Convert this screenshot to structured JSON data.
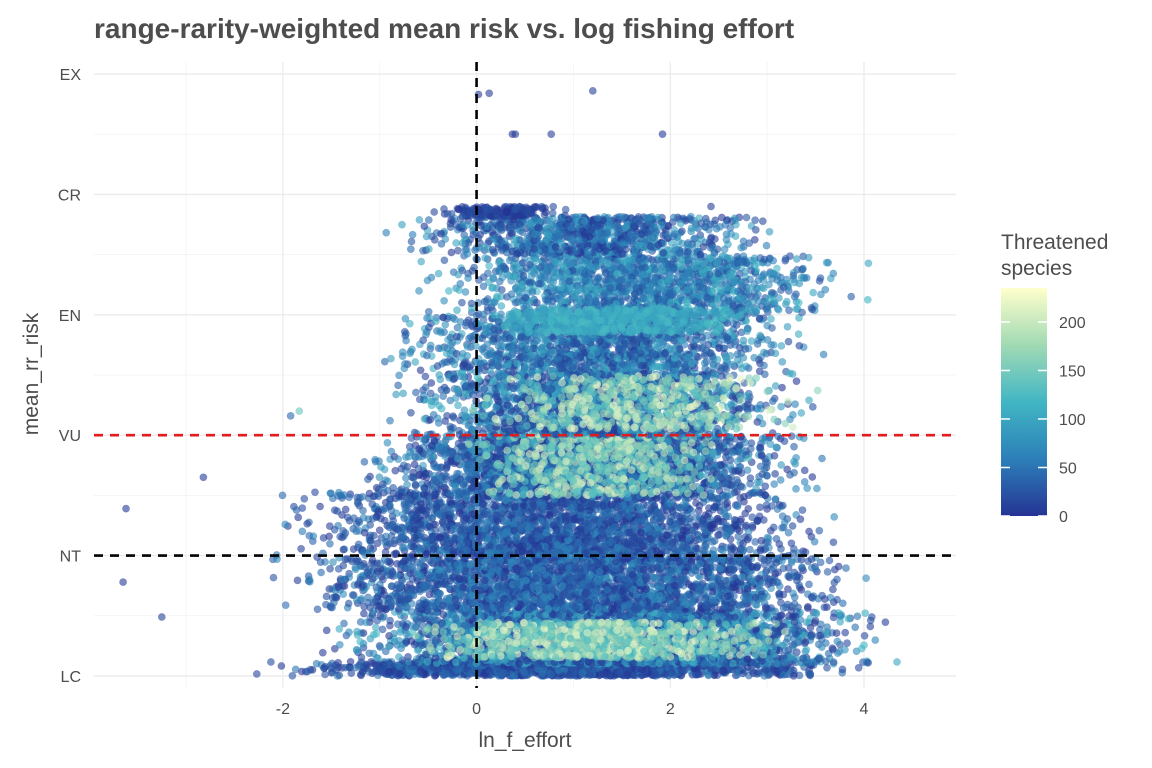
{
  "chart_data": {
    "type": "scatter",
    "title": "range-rarity-weighted mean risk vs. log fishing effort",
    "xlabel": "ln_f_effort",
    "ylabel": "mean_rr_risk",
    "xlim": [
      -3.95,
      4.95
    ],
    "ylim": [
      -0.1,
      5.1
    ],
    "x_ticks": [
      -2,
      0,
      2,
      4
    ],
    "x_tick_labels": [
      "-2",
      "0",
      "2",
      "4"
    ],
    "y_ticks": [
      0,
      1,
      2,
      3,
      4,
      5
    ],
    "y_tick_labels": [
      "LC",
      "NT",
      "VU",
      "EN",
      "CR",
      "EX"
    ],
    "grid": true,
    "reference_lines": [
      {
        "axis": "x",
        "value": 0,
        "color": "#000000",
        "style": "dashed"
      },
      {
        "axis": "y",
        "value": 1,
        "color": "#000000",
        "style": "dashed"
      },
      {
        "axis": "y",
        "value": 2,
        "color": "#e41a1c",
        "style": "dashed"
      }
    ],
    "color_legend": {
      "title_lines": [
        "Threatened",
        "species"
      ],
      "min": 0,
      "max": 235,
      "ticks": [
        0,
        50,
        100,
        150,
        200
      ],
      "tick_labels": [
        "0",
        "50",
        "100",
        "150",
        "200"
      ],
      "colors": [
        "#253494",
        "#2c7fb8",
        "#41b6c4",
        "#a1dab4",
        "#ffffcc"
      ],
      "placement": "right"
    },
    "outlier_points": [
      {
        "x": 0.02,
        "y": 4.83,
        "value": 5
      },
      {
        "x": 0.13,
        "y": 4.84,
        "value": 5
      },
      {
        "x": 1.2,
        "y": 4.86,
        "value": 10
      },
      {
        "x": 0.37,
        "y": 4.5,
        "value": 5
      },
      {
        "x": 0.4,
        "y": 4.5,
        "value": 5
      },
      {
        "x": 0.77,
        "y": 4.5,
        "value": 10
      },
      {
        "x": 1.92,
        "y": 4.5,
        "value": 5
      },
      {
        "x": 2.42,
        "y": 3.9,
        "value": 10
      },
      {
        "x": -3.62,
        "y": 1.39,
        "value": 5
      },
      {
        "x": -3.65,
        "y": 0.78,
        "value": 5
      },
      {
        "x": -3.25,
        "y": 0.49,
        "value": 10
      },
      {
        "x": -2.82,
        "y": 1.65,
        "value": 5
      },
      {
        "x": -1.83,
        "y": 2.2,
        "value": 140
      },
      {
        "x": -1.92,
        "y": 2.16,
        "value": 40
      }
    ],
    "clusters": [
      {
        "x_min": -2.6,
        "x_max": 4.3,
        "y_min": 0.0,
        "y_max": 0.12,
        "count": 1300,
        "v_min": 0,
        "v_max": 60
      },
      {
        "x_min": -1.8,
        "x_max": 4.55,
        "y_min": 0.1,
        "y_max": 0.55,
        "count": 3000,
        "v_min": 0,
        "v_max": 120
      },
      {
        "x_min": -0.9,
        "x_max": 3.4,
        "y_min": 0.15,
        "y_max": 0.45,
        "count": 850,
        "v_min": 120,
        "v_max": 230
      },
      {
        "x_min": -2.3,
        "x_max": 4.35,
        "y_min": 0.55,
        "y_max": 1.0,
        "count": 2400,
        "v_min": 0,
        "v_max": 80
      },
      {
        "x_min": -2.3,
        "x_max": 4.0,
        "y_min": 1.0,
        "y_max": 1.55,
        "count": 2400,
        "v_min": 0,
        "v_max": 70
      },
      {
        "x_min": -1.4,
        "x_max": 3.7,
        "y_min": 1.55,
        "y_max": 2.0,
        "count": 2400,
        "v_min": 0,
        "v_max": 90
      },
      {
        "x_min": -0.4,
        "x_max": 2.9,
        "y_min": 1.5,
        "y_max": 2.05,
        "count": 650,
        "v_min": 120,
        "v_max": 220
      },
      {
        "x_min": -1.1,
        "x_max": 3.6,
        "y_min": 2.0,
        "y_max": 2.55,
        "count": 1800,
        "v_min": 0,
        "v_max": 120
      },
      {
        "x_min": -0.3,
        "x_max": 3.6,
        "y_min": 2.05,
        "y_max": 2.5,
        "count": 450,
        "v_min": 130,
        "v_max": 230
      },
      {
        "x_min": -1.2,
        "x_max": 3.7,
        "y_min": 2.55,
        "y_max": 3.0,
        "count": 1400,
        "v_min": 10,
        "v_max": 110
      },
      {
        "x_min": -0.8,
        "x_max": 4.2,
        "y_min": 3.0,
        "y_max": 3.5,
        "count": 1400,
        "v_min": 20,
        "v_max": 120
      },
      {
        "x_min": -0.2,
        "x_max": 3.0,
        "y_min": 2.85,
        "y_max": 3.05,
        "count": 500,
        "v_min": 90,
        "v_max": 130
      },
      {
        "x_min": -1.0,
        "x_max": 3.3,
        "y_min": 3.5,
        "y_max": 3.82,
        "count": 900,
        "v_min": 0,
        "v_max": 100
      },
      {
        "x_min": -0.6,
        "x_max": 1.1,
        "y_min": 3.82,
        "y_max": 3.9,
        "count": 160,
        "v_min": 0,
        "v_max": 30
      }
    ]
  }
}
